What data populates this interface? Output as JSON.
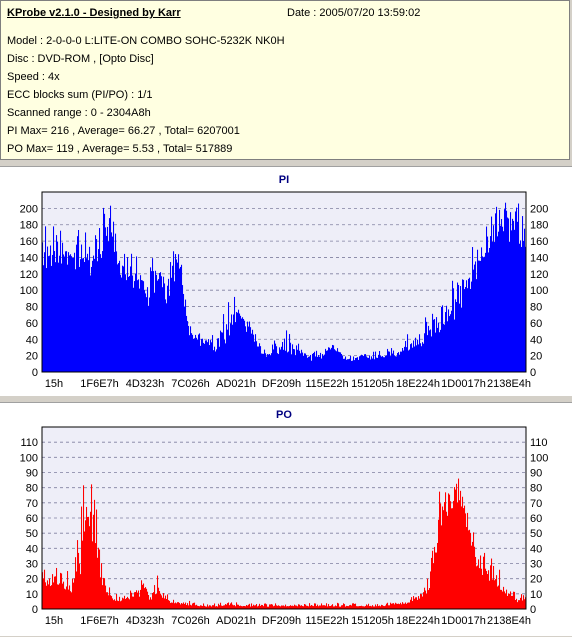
{
  "info": {
    "title": "KProbe v2.1.0 - Designed by Karr",
    "date": "Date : 2005/07/20 13:59:02",
    "model": "Model : 2-0-0-0 L:LITE-ON COMBO SOHC-5232K NK0H",
    "disc": "Disc : DVD-ROM ,  [Opto Disc]",
    "speed": "Speed : 4x",
    "ecc": "ECC blocks sum (PI/PO) : 1/1",
    "range": "Scanned range : 0 - 2304A8h",
    "pi_stats": "PI Max= 216 , Average= 66.27 , Total= 6207001",
    "po_stats": "PO Max= 119 , Average= 5.53 , Total= 517889"
  },
  "colors": {
    "pi": "#0000ff",
    "po": "#ff0000",
    "plot_bg": "#eeeef8",
    "grid": "#8080a0",
    "title": "#000080"
  },
  "chart_data": [
    {
      "type": "area",
      "title": "PI",
      "ylim": [
        0,
        220
      ],
      "yticks": [
        0,
        20,
        40,
        60,
        80,
        100,
        120,
        140,
        160,
        180,
        200
      ],
      "grid": true,
      "xtick_labels": [
        "15h",
        "1F6E7h",
        "4D323h",
        "7C026h",
        "AD021h",
        "DF209h",
        "115E22h",
        "151205h",
        "18E224h",
        "1D0017h",
        "2138E4h"
      ],
      "x": [
        0,
        2,
        4,
        6,
        8,
        10,
        12,
        14,
        16,
        18,
        20,
        22,
        24,
        26,
        28,
        30,
        32,
        34,
        36,
        38,
        40,
        42,
        44,
        46,
        48,
        50,
        52,
        54,
        56,
        58,
        60,
        62,
        64,
        66,
        68,
        70,
        72,
        74,
        76,
        78,
        80,
        82,
        84,
        86,
        88,
        90,
        92,
        94,
        96,
        98,
        100
      ],
      "values": [
        170,
        160,
        175,
        150,
        165,
        145,
        160,
        210,
        150,
        140,
        120,
        105,
        130,
        100,
        160,
        55,
        40,
        35,
        30,
        45,
        80,
        65,
        45,
        20,
        25,
        30,
        22,
        25,
        15,
        20,
        35,
        20,
        15,
        20,
        18,
        20,
        22,
        25,
        30,
        40,
        50,
        55,
        70,
        95,
        115,
        150,
        170,
        212,
        210,
        205,
        200
      ],
      "peaks": [
        185,
        185,
        185,
        175,
        185,
        175,
        210,
        212,
        175,
        150,
        150,
        140,
        150,
        135,
        178,
        78,
        55,
        50,
        45,
        95,
        95,
        85,
        55,
        35,
        45,
        68,
        40,
        35,
        28,
        25,
        40,
        30,
        25,
        25,
        28,
        30,
        35,
        40,
        50,
        60,
        80,
        90,
        120,
        130,
        150,
        175,
        185,
        216,
        212,
        210,
        200
      ]
    },
    {
      "type": "area",
      "title": "PO",
      "ylim": [
        0,
        120
      ],
      "yticks": [
        0,
        10,
        20,
        30,
        40,
        50,
        60,
        70,
        80,
        90,
        100,
        110
      ],
      "grid": true,
      "xtick_labels": [
        "15h",
        "1F6E7h",
        "4D323h",
        "7C026h",
        "AD021h",
        "DF209h",
        "115E22h",
        "151205h",
        "18E224h",
        "1D0017h",
        "2138E4h"
      ],
      "x": [
        0,
        2,
        4,
        6,
        8,
        10,
        12,
        14,
        16,
        18,
        20,
        22,
        24,
        26,
        28,
        30,
        32,
        34,
        36,
        38,
        40,
        42,
        44,
        46,
        48,
        50,
        52,
        54,
        56,
        58,
        60,
        62,
        64,
        66,
        68,
        70,
        72,
        74,
        76,
        78,
        80,
        82,
        84,
        86,
        88,
        90,
        92,
        94,
        96,
        98,
        100
      ],
      "values": [
        22,
        15,
        20,
        10,
        30,
        60,
        20,
        8,
        5,
        8,
        10,
        6,
        12,
        5,
        4,
        3,
        2,
        2,
        2,
        3,
        2,
        2,
        2,
        2,
        2,
        2,
        2,
        2,
        2,
        2,
        2,
        2,
        2,
        2,
        2,
        2,
        3,
        3,
        5,
        8,
        15,
        60,
        80,
        85,
        55,
        30,
        25,
        15,
        10,
        5,
        8
      ],
      "peaks": [
        30,
        30,
        28,
        30,
        90,
        119,
        40,
        15,
        10,
        12,
        25,
        12,
        30,
        10,
        8,
        6,
        5,
        4,
        4,
        5,
        5,
        4,
        4,
        4,
        4,
        4,
        4,
        4,
        4,
        4,
        5,
        4,
        4,
        4,
        4,
        5,
        5,
        5,
        8,
        12,
        25,
        100,
        100,
        90,
        80,
        40,
        40,
        30,
        20,
        10,
        12
      ]
    }
  ]
}
